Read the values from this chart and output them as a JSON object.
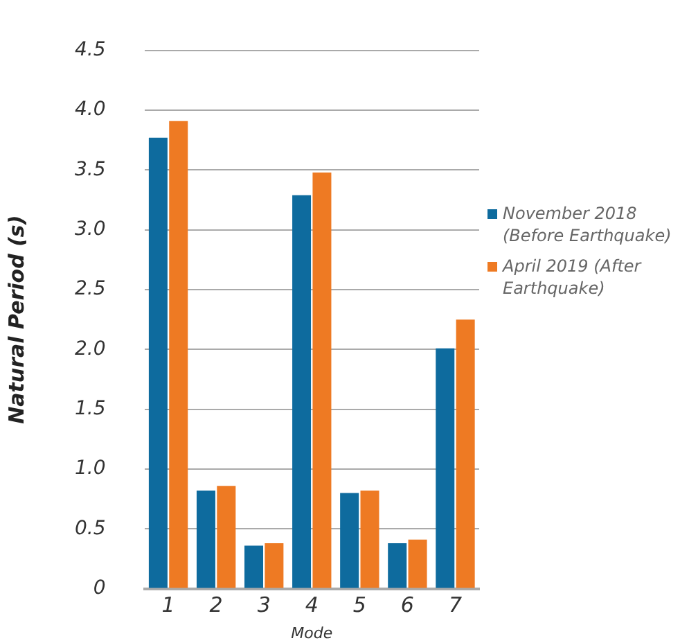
{
  "chart_data": {
    "type": "bar",
    "xlabel": "Mode",
    "ylabel": "Natural Period (s)",
    "categories": [
      "1",
      "2",
      "3",
      "4",
      "5",
      "6",
      "7"
    ],
    "series": [
      {
        "name": "November 2018 (Before Earthquake)",
        "color": "#0e6b9e",
        "values": [
          3.77,
          0.82,
          0.36,
          3.29,
          0.8,
          0.38,
          2.01
        ]
      },
      {
        "name": "April 2019 (After Earthquake)",
        "color": "#ee7a23",
        "values": [
          3.91,
          0.86,
          0.38,
          3.48,
          0.82,
          0.41,
          2.25
        ]
      }
    ],
    "ylim": [
      0,
      4.5
    ],
    "yticks": [
      0,
      0.5,
      {
        "value": 1,
        "label": "1.0"
      },
      1.5,
      {
        "value": 2,
        "label": "2.0"
      },
      2.5,
      {
        "value": 3,
        "label": "3.0"
      },
      3.5,
      {
        "value": 4,
        "label": "4.0"
      },
      4.5
    ],
    "grid": "y",
    "legend": "right"
  }
}
